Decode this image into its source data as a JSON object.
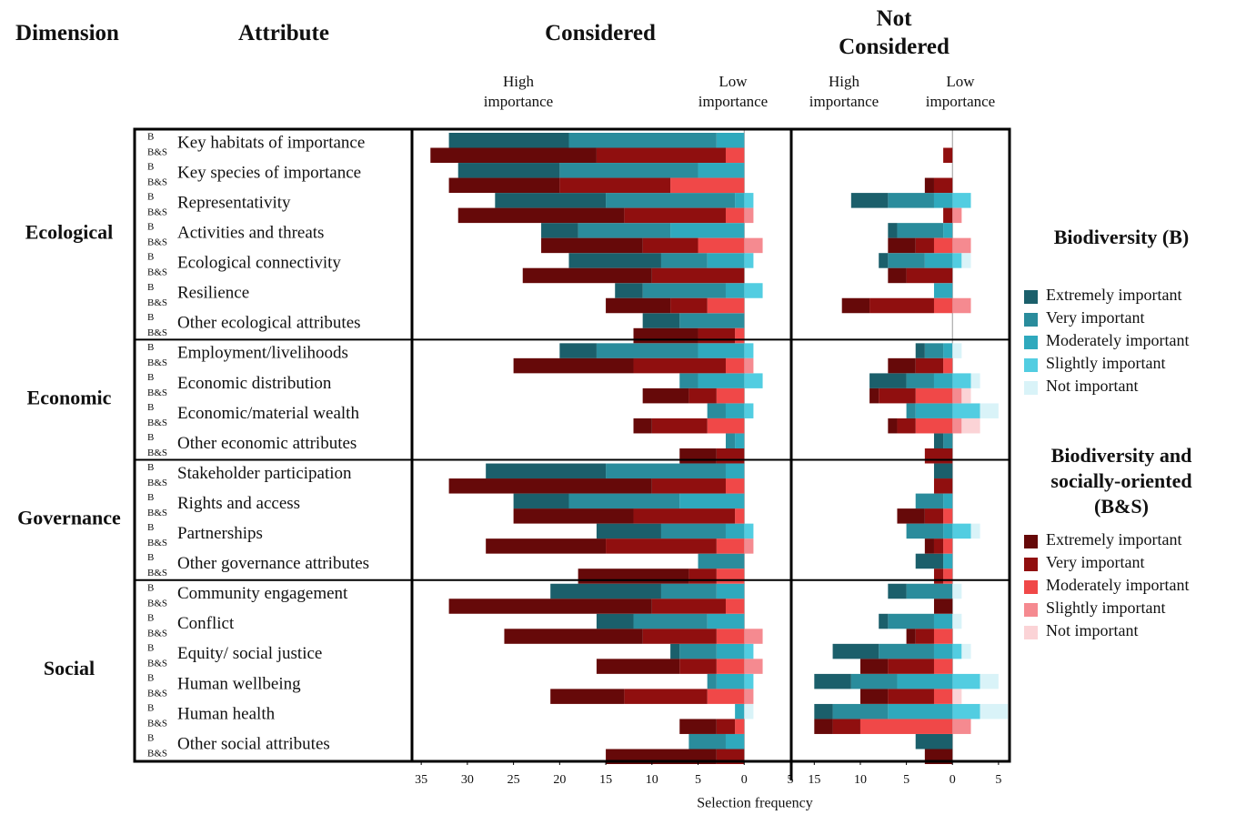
{
  "chart_data": {
    "type": "diverging-bar",
    "headers": {
      "dimension": "Dimension",
      "attribute": "Attribute"
    },
    "x_label": "Selection frequency",
    "dimensions": [
      {
        "name": "Ecological",
        "attributes": [
          "Key habitats of importance",
          "Key species of importance",
          "Representativity",
          "Activities and threats",
          "Ecological connectivity",
          "Resilience",
          "Other ecological attributes"
        ]
      },
      {
        "name": "Economic",
        "attributes": [
          "Employment/livelihoods",
          "Economic distribution",
          "Economic/material wealth",
          "Other economic attributes"
        ]
      },
      {
        "name": "Governance",
        "attributes": [
          "Stakeholder participation",
          "Rights and access",
          "Partnerships",
          "Other governance attributes"
        ]
      },
      {
        "name": "Social",
        "attributes": [
          "Community engagement",
          "Conflict",
          "Equity/ social justice",
          "Human wellbeing",
          "Human health",
          "Other social attributes"
        ]
      }
    ],
    "groups": [
      {
        "label": "B",
        "title": "Biodiversity (B)",
        "series": [
          {
            "name": "Extremely important",
            "color": "#1b5f6b"
          },
          {
            "name": "Very important",
            "color": "#2a8c9c"
          },
          {
            "name": "Moderately important",
            "color": "#2fa9bd"
          },
          {
            "name": "Slightly important",
            "color": "#52cde1"
          },
          {
            "name": "Not important",
            "color": "#d9f3f8"
          }
        ]
      },
      {
        "label": "B&S",
        "title": "Biodiversity and socially-oriented (B&S)",
        "series": [
          {
            "name": "Extremely important",
            "color": "#660909"
          },
          {
            "name": "Very important",
            "color": "#900f0f"
          },
          {
            "name": "Moderately important",
            "color": "#f04848"
          },
          {
            "name": "Slightly important",
            "color": "#f58a90"
          },
          {
            "name": "Not important",
            "color": "#fbd3d6"
          }
        ]
      }
    ],
    "panels": [
      {
        "title": "Considered",
        "high_label": "High importance",
        "low_label": "Low importance",
        "xlim": [
          -36,
          5
        ],
        "xticks": [
          {
            "value": -35,
            "label": "35"
          },
          {
            "value": -30,
            "label": "30"
          },
          {
            "value": -25,
            "label": "25"
          },
          {
            "value": -20,
            "label": "20"
          },
          {
            "value": -15,
            "label": "15"
          },
          {
            "value": -10,
            "label": "10"
          },
          {
            "value": -5,
            "label": "5"
          },
          0,
          5
        ],
        "groups": [
          {
            "series": [
              {
                "values": [
                  13,
                  11,
                  12,
                  4,
                  10,
                  3,
                  4,
                  4,
                  0,
                  0,
                  0,
                  13,
                  6,
                  7,
                  0,
                  12,
                  4,
                  1,
                  0,
                  0,
                  0
                ]
              },
              {
                "values": [
                  16,
                  15,
                  14,
                  10,
                  5,
                  9,
                  7,
                  11,
                  2,
                  2,
                  1,
                  13,
                  12,
                  7,
                  5,
                  6,
                  8,
                  4,
                  1,
                  0,
                  4
                ]
              },
              {
                "values": [
                  3,
                  5,
                  1,
                  8,
                  4,
                  2,
                  0,
                  5,
                  5,
                  2,
                  1,
                  2,
                  7,
                  2,
                  0,
                  3,
                  4,
                  3,
                  3,
                  1,
                  2
                ]
              },
              {
                "values": [
                  0,
                  0,
                  1,
                  0,
                  1,
                  2,
                  0,
                  1,
                  2,
                  1,
                  0,
                  0,
                  0,
                  1,
                  0,
                  0,
                  0,
                  1,
                  1,
                  0,
                  0
                ]
              },
              {
                "values": [
                  0,
                  0,
                  0,
                  0,
                  0,
                  0,
                  0,
                  0,
                  0,
                  0,
                  0,
                  0,
                  0,
                  0,
                  0,
                  0,
                  0,
                  0,
                  0,
                  1,
                  0
                ]
              }
            ]
          },
          {
            "series": [
              {
                "values": [
                  18,
                  12,
                  18,
                  11,
                  14,
                  7,
                  7,
                  13,
                  5,
                  2,
                  4,
                  22,
                  13,
                  13,
                  12,
                  22,
                  15,
                  9,
                  8,
                  4,
                  12
                ]
              },
              {
                "values": [
                  14,
                  12,
                  11,
                  6,
                  10,
                  4,
                  4,
                  10,
                  3,
                  6,
                  3,
                  8,
                  11,
                  12,
                  3,
                  8,
                  8,
                  4,
                  9,
                  2,
                  3
                ]
              },
              {
                "values": [
                  2,
                  8,
                  2,
                  5,
                  0,
                  4,
                  1,
                  2,
                  3,
                  4,
                  0,
                  2,
                  1,
                  3,
                  3,
                  2,
                  3,
                  3,
                  4,
                  1,
                  0
                ]
              },
              {
                "values": [
                  0,
                  0,
                  1,
                  2,
                  0,
                  0,
                  0,
                  1,
                  0,
                  0,
                  0,
                  0,
                  0,
                  1,
                  0,
                  0,
                  2,
                  2,
                  1,
                  0,
                  0
                ]
              },
              {
                "values": [
                  0,
                  0,
                  0,
                  0,
                  0,
                  0,
                  0,
                  0,
                  0,
                  0,
                  0,
                  0,
                  0,
                  0,
                  0,
                  0,
                  0,
                  0,
                  0,
                  0,
                  0
                ]
              }
            ]
          }
        ]
      },
      {
        "title": "Not Considered",
        "high_label": "High importance",
        "low_label": "Low importance",
        "xlim": [
          -17.5,
          6
        ],
        "xticks": [
          {
            "value": -15,
            "label": "15"
          },
          {
            "value": -10,
            "label": "10"
          },
          {
            "value": -5,
            "label": "5"
          },
          0,
          5
        ],
        "groups": [
          {
            "series": [
              {
                "values": [
                  0,
                  0,
                  4,
                  1,
                  1,
                  0,
                  0,
                  1,
                  4,
                  0,
                  1,
                  2,
                  0,
                  0,
                  3,
                  2,
                  1,
                  5,
                  4,
                  2,
                  4
                ]
              },
              {
                "values": [
                  0,
                  0,
                  5,
                  5,
                  4,
                  0,
                  0,
                  2,
                  3,
                  1,
                  1,
                  0,
                  3,
                  4,
                  0,
                  5,
                  5,
                  6,
                  5,
                  6,
                  0
                ]
              },
              {
                "values": [
                  0,
                  0,
                  2,
                  1,
                  3,
                  2,
                  0,
                  1,
                  2,
                  4,
                  0,
                  0,
                  1,
                  1,
                  1,
                  0,
                  2,
                  2,
                  6,
                  7,
                  0
                ]
              },
              {
                "values": [
                  0,
                  0,
                  2,
                  0,
                  1,
                  0,
                  0,
                  0,
                  2,
                  3,
                  0,
                  0,
                  0,
                  2,
                  0,
                  0,
                  0,
                  1,
                  3,
                  3,
                  0
                ]
              },
              {
                "values": [
                  0,
                  0,
                  0,
                  0,
                  1,
                  0,
                  0,
                  1,
                  1,
                  2,
                  0,
                  0,
                  0,
                  1,
                  0,
                  1,
                  1,
                  1,
                  2,
                  3,
                  0
                ]
              }
            ]
          },
          {
            "series": [
              {
                "values": [
                  0,
                  1,
                  0,
                  3,
                  2,
                  3,
                  0,
                  3,
                  1,
                  1,
                  0,
                  0,
                  3,
                  1,
                  0,
                  2,
                  1,
                  3,
                  3,
                  2,
                  3
                ]
              },
              {
                "values": [
                  1,
                  2,
                  1,
                  2,
                  5,
                  7,
                  0,
                  3,
                  4,
                  2,
                  3,
                  2,
                  2,
                  1,
                  1,
                  0,
                  2,
                  5,
                  5,
                  3,
                  0
                ]
              },
              {
                "values": [
                  0,
                  0,
                  0,
                  2,
                  0,
                  2,
                  0,
                  1,
                  4,
                  4,
                  0,
                  0,
                  1,
                  1,
                  1,
                  0,
                  2,
                  2,
                  2,
                  10,
                  0
                ]
              },
              {
                "values": [
                  0,
                  0,
                  1,
                  2,
                  0,
                  2,
                  0,
                  0,
                  1,
                  1,
                  0,
                  0,
                  0,
                  0,
                  0,
                  0,
                  0,
                  0,
                  0,
                  2,
                  0
                ]
              },
              {
                "values": [
                  0,
                  0,
                  0,
                  0,
                  0,
                  0,
                  0,
                  0,
                  1,
                  2,
                  0,
                  0,
                  0,
                  0,
                  0,
                  0,
                  0,
                  0,
                  1,
                  0,
                  0
                ]
              }
            ]
          }
        ]
      }
    ]
  }
}
